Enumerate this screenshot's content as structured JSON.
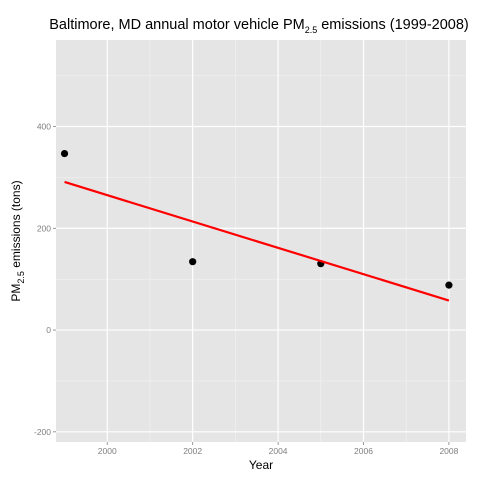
{
  "chart_data": {
    "type": "scatter",
    "title": {
      "prefix": "Baltimore, MD annual motor vehicle PM",
      "subscript": "2.5",
      "suffix": " emissions (1999-2008)"
    },
    "xlabel": "Year",
    "ylabel": {
      "prefix": "PM",
      "subscript": "2.5",
      "suffix": " emissions (tons)"
    },
    "xlim": [
      1998.8,
      2008.4
    ],
    "ylim": [
      -220,
      570
    ],
    "xticks": [
      2000,
      2002,
      2004,
      2006,
      2008
    ],
    "yticks": [
      -200,
      0,
      200,
      400
    ],
    "xtick_labels": [
      "2000",
      "2002",
      "2004",
      "2006",
      "2008"
    ],
    "ytick_labels": [
      "-200",
      "0",
      "200",
      "400"
    ],
    "grid": true,
    "background_color": "#e5e5e5",
    "grid_color": "#ffffff",
    "series": [
      {
        "type": "scatter",
        "color": "#000000",
        "x": [
          1999,
          2002,
          2005,
          2008
        ],
        "y": [
          346.8,
          134.3,
          130.4,
          88.3
        ]
      },
      {
        "type": "line",
        "color": "#ff0000",
        "x": [
          1999,
          2008
        ],
        "y": [
          291,
          58
        ]
      }
    ]
  }
}
